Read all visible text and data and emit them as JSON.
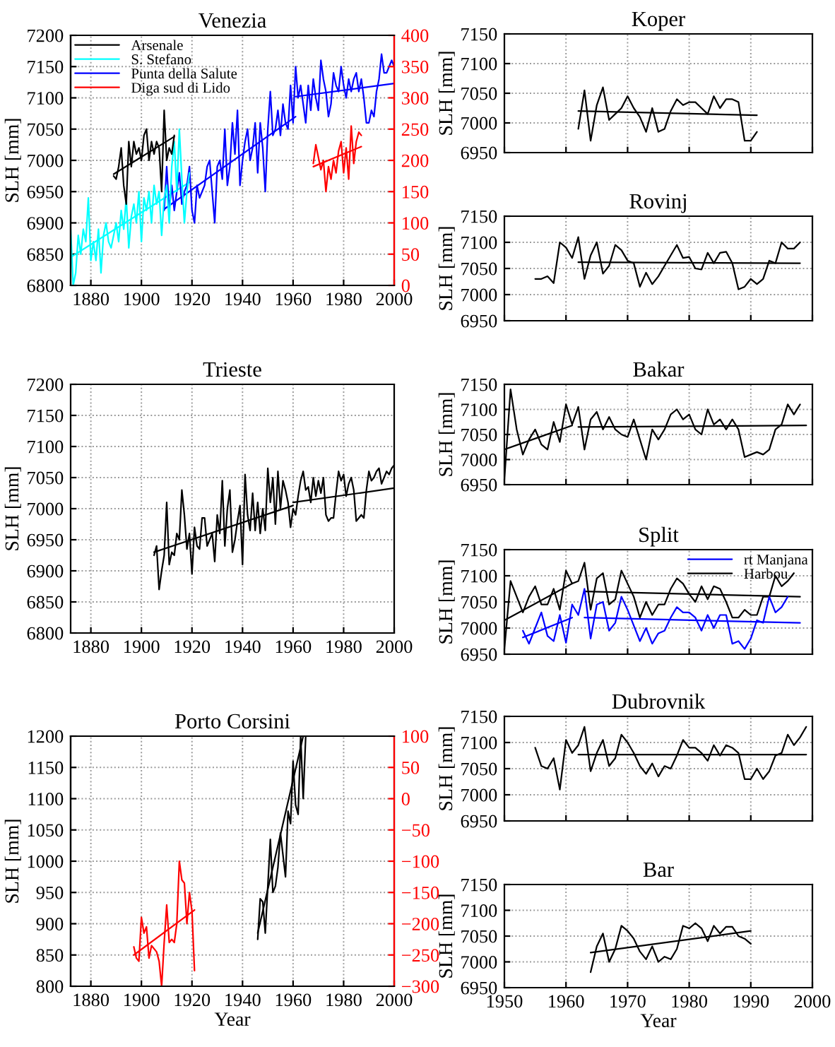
{
  "chart_data": [
    {
      "type": "line",
      "title": "Venezia",
      "ylabel": "SLH [mm]",
      "xlim": [
        1872,
        2000
      ],
      "xticks": [
        1880,
        1900,
        1920,
        1940,
        1960,
        1980,
        2000
      ],
      "ylim": [
        6800,
        7200
      ],
      "yticks": [
        6800,
        6850,
        6900,
        6950,
        7000,
        7050,
        7100,
        7150,
        7200
      ],
      "y2lim": [
        0,
        400
      ],
      "y2ticks": [
        0,
        50,
        100,
        150,
        200,
        250,
        300,
        350,
        400
      ],
      "grid": true,
      "legend": "top left",
      "series": [
        {
          "name": "Arsenale",
          "color": "#000000",
          "x": [
            1889,
            1890,
            1891,
            1892,
            1893,
            1894,
            1895,
            1896,
            1897,
            1898,
            1899,
            1900,
            1901,
            1902,
            1903,
            1904,
            1905,
            1906,
            1907,
            1908,
            1909,
            1910,
            1911,
            1912,
            1913
          ],
          "values": [
            6975,
            6970,
            6990,
            7020,
            6960,
            6930,
            7030,
            6990,
            7030,
            7010,
            7020,
            7000,
            7040,
            7050,
            7000,
            7030,
            7010,
            7030,
            7020,
            6950,
            7080,
            7000,
            7020,
            7010,
            7040
          ]
        },
        {
          "name": "S. Stefano",
          "color": "#00ffff",
          "x": [
            1872,
            1873,
            1874,
            1875,
            1876,
            1877,
            1878,
            1879,
            1880,
            1881,
            1882,
            1883,
            1884,
            1885,
            1886,
            1887,
            1888,
            1889,
            1890,
            1891,
            1892,
            1893,
            1894,
            1895,
            1896,
            1897,
            1898,
            1899,
            1900,
            1901,
            1902,
            1903,
            1904,
            1905,
            1906,
            1907,
            1908,
            1909,
            1910,
            1911,
            1912,
            1913,
            1914,
            1915,
            1916,
            1917,
            1918,
            1919
          ],
          "values": [
            6890,
            6800,
            6820,
            6880,
            6850,
            6890,
            6870,
            6940,
            6840,
            6870,
            6840,
            6890,
            6820,
            6880,
            6900,
            6870,
            6860,
            6880,
            6900,
            6870,
            6920,
            6890,
            6940,
            6860,
            6910,
            6930,
            6900,
            6950,
            6870,
            6940,
            6920,
            6950,
            6900,
            6960,
            6930,
            6950,
            6880,
            6940,
            6960,
            6900,
            6990,
            7030,
            6950,
            7050,
            6970,
            6900,
            6950,
            6980
          ]
        },
        {
          "name": "Punta della Salute",
          "color": "#0000ff",
          "x": [
            1909,
            1910,
            1911,
            1912,
            1913,
            1914,
            1915,
            1916,
            1917,
            1918,
            1919,
            1920,
            1921,
            1922,
            1923,
            1924,
            1925,
            1926,
            1927,
            1928,
            1929,
            1930,
            1931,
            1932,
            1933,
            1934,
            1935,
            1936,
            1937,
            1938,
            1939,
            1940,
            1941,
            1942,
            1943,
            1944,
            1945,
            1946,
            1947,
            1948,
            1949,
            1950,
            1951,
            1952,
            1953,
            1954,
            1955,
            1956,
            1957,
            1958,
            1959,
            1960,
            1961,
            1962,
            1963,
            1964,
            1965,
            1966,
            1967,
            1968,
            1969,
            1970,
            1971,
            1972,
            1973,
            1974,
            1975,
            1976,
            1977,
            1978,
            1979,
            1980,
            1981,
            1982,
            1983,
            1984,
            1985,
            1986,
            1987,
            1988,
            1989,
            1990,
            1991,
            1992,
            1993,
            1994,
            1995,
            1996,
            1997,
            1998,
            1999,
            2000
          ],
          "values": [
            6920,
            6990,
            6920,
            6960,
            6920,
            6950,
            6980,
            6930,
            6950,
            6960,
            6990,
            6920,
            6900,
            6960,
            6940,
            6950,
            6960,
            6990,
            7000,
            6950,
            6900,
            6990,
            7000,
            6970,
            7050,
            6960,
            6990,
            7060,
            7010,
            7080,
            6960,
            7000,
            7030,
            7050,
            7000,
            7020,
            7060,
            6980,
            7060,
            7020,
            6950,
            7050,
            7110,
            7040,
            7050,
            7080,
            7040,
            7090,
            7060,
            7050,
            7120,
            7060,
            7150,
            7100,
            7120,
            7090,
            7060,
            7120,
            7080,
            7130,
            7100,
            7080,
            7160,
            7130,
            7110,
            7070,
            7090,
            7140,
            7120,
            7110,
            7150,
            7120,
            7100,
            7130,
            7110,
            7130,
            7140,
            7110,
            7130,
            7100,
            7060,
            7060,
            7080,
            7070,
            7110,
            7130,
            7170,
            7140,
            7140,
            7150,
            7160,
            7150
          ]
        },
        {
          "name": "Diga sud di Lido",
          "color": "#ff0000",
          "axis": "y2",
          "x": [
            1968,
            1969,
            1970,
            1971,
            1972,
            1973,
            1974,
            1975,
            1976,
            1977,
            1978,
            1979,
            1980,
            1981,
            1982,
            1983,
            1984,
            1985,
            1986,
            1987
          ],
          "values": [
            195,
            225,
            205,
            185,
            200,
            150,
            190,
            170,
            200,
            180,
            215,
            230,
            180,
            220,
            170,
            255,
            195,
            230,
            245,
            240
          ]
        },
        {
          "color": "#000000",
          "x": [
            1889,
            1913
          ],
          "values": [
            6978,
            7038
          ]
        },
        {
          "color": "#00ffff",
          "x": [
            1872,
            1919
          ],
          "values": [
            6845,
            6965
          ]
        },
        {
          "color": "#0000ff",
          "x": [
            1909,
            1961
          ],
          "values": [
            6922,
            7070
          ]
        },
        {
          "color": "#0000ff",
          "x": [
            1961,
            2000
          ],
          "values": [
            7102,
            7123
          ]
        },
        {
          "color": "#ff0000",
          "axis": "y2",
          "x": [
            1968,
            1987
          ],
          "values": [
            190,
            222
          ]
        }
      ]
    },
    {
      "type": "line",
      "title": "Trieste",
      "ylabel": "SLH [mm]",
      "xlim": [
        1872,
        2000
      ],
      "xticks": [
        1880,
        1900,
        1920,
        1940,
        1960,
        1980,
        2000
      ],
      "ylim": [
        6800,
        7200
      ],
      "yticks": [
        6800,
        6850,
        6900,
        6950,
        7000,
        7050,
        7100,
        7150,
        7200
      ],
      "grid": true,
      "series": [
        {
          "color": "#000000",
          "x": [
            1905,
            1906,
            1907,
            1908,
            1909,
            1910,
            1911,
            1912,
            1913,
            1914,
            1915,
            1916,
            1917,
            1918,
            1919,
            1920,
            1921,
            1922,
            1923,
            1924,
            1925,
            1926,
            1927,
            1928,
            1929,
            1930,
            1931,
            1932,
            1933,
            1934,
            1935,
            1936,
            1937,
            1938,
            1939,
            1940,
            1941,
            1942,
            1943,
            1944,
            1945,
            1946,
            1947,
            1948,
            1949,
            1950,
            1951,
            1952,
            1953,
            1954,
            1955,
            1956,
            1957,
            1958,
            1959,
            1960,
            1961,
            1962,
            1963,
            1964,
            1965,
            1966,
            1967,
            1968,
            1969,
            1970,
            1971,
            1972,
            1973,
            1974,
            1975,
            1976,
            1977,
            1978,
            1979,
            1980,
            1981,
            1982,
            1983,
            1984,
            1985,
            1986,
            1987,
            1988,
            1989,
            1990,
            1991,
            1992,
            1993,
            1994,
            1995,
            1996,
            1997,
            1998,
            1999,
            2000
          ],
          "values": [
            6925,
            6940,
            6870,
            6900,
            6925,
            7010,
            6910,
            6930,
            6925,
            6960,
            6950,
            7030,
            6990,
            6935,
            6960,
            6895,
            6970,
            6940,
            6935,
            6985,
            6985,
            6940,
            6950,
            6960,
            6915,
            6990,
            6960,
            7045,
            6940,
            7000,
            7030,
            6930,
            6950,
            6980,
            7005,
            6910,
            7055,
            6990,
            6965,
            7025,
            6965,
            7010,
            6960,
            7000,
            6965,
            7065,
            7010,
            7050,
            6975,
            7060,
            7000,
            7045,
            7030,
            7010,
            6970,
            7000,
            6990,
            7020,
            7045,
            7060,
            7030,
            7035,
            7010,
            7050,
            7020,
            7045,
            7025,
            7050,
            6990,
            6980,
            6985,
            6985,
            7025,
            7060,
            7045,
            7055,
            7020,
            7040,
            7050,
            7030,
            6980,
            6985,
            6990,
            6985,
            7030,
            7060,
            7045,
            7050,
            7060,
            7065,
            7040,
            7050,
            7060,
            7055,
            7065,
            7070
          ]
        },
        {
          "color": "#000000",
          "x": [
            1905,
            1960
          ],
          "values": [
            6930,
            7005
          ]
        },
        {
          "color": "#000000",
          "x": [
            1960,
            2000
          ],
          "values": [
            7010,
            7033
          ]
        }
      ]
    },
    {
      "type": "line",
      "title": "Porto Corsini",
      "xlabel": "Year",
      "ylabel": "SLH [mm]",
      "xlim": [
        1872,
        2000
      ],
      "xticks": [
        1880,
        1900,
        1920,
        1940,
        1960,
        1980,
        2000
      ],
      "ylim": [
        800,
        1200
      ],
      "yticks": [
        800,
        850,
        900,
        950,
        1000,
        1050,
        1100,
        1150,
        1200
      ],
      "y2lim": [
        -300,
        100
      ],
      "y2ticks": [
        {
          "value": -300,
          "label": "−300"
        },
        {
          "value": -250,
          "label": "−250"
        },
        {
          "value": -200,
          "label": "−200"
        },
        {
          "value": -150,
          "label": "−150"
        },
        {
          "value": -100,
          "label": "−100"
        },
        {
          "value": -50,
          "label": "−50"
        },
        0,
        50,
        100
      ],
      "grid": true,
      "series": [
        {
          "color": "#000000",
          "x": [
            1946,
            1947,
            1948,
            1949,
            1950,
            1951,
            1952,
            1953,
            1954,
            1955,
            1956,
            1957,
            1958,
            1959,
            1960,
            1961,
            1962,
            1963,
            1964,
            1965
          ],
          "values": [
            875,
            940,
            935,
            885,
            960,
            1035,
            950,
            960,
            990,
            1045,
            1010,
            975,
            1080,
            1060,
            1160,
            1090,
            1075,
            1200,
            1100,
            1200
          ]
        },
        {
          "color": "#ff0000",
          "axis": "y2",
          "x": [
            1897,
            1898,
            1899,
            1900,
            1901,
            1902,
            1903,
            1904,
            1905,
            1906,
            1907,
            1908,
            1909,
            1910,
            1911,
            1912,
            1913,
            1914,
            1915,
            1916,
            1917,
            1918,
            1919,
            1920,
            1921
          ],
          "values": [
            -237,
            -255,
            -260,
            -190,
            -215,
            -205,
            -255,
            -235,
            -240,
            -245,
            -260,
            -300,
            -230,
            -170,
            -230,
            -225,
            -230,
            -200,
            -100,
            -130,
            -135,
            -200,
            -150,
            -180,
            -275
          ]
        },
        {
          "color": "#000000",
          "x": [
            1946,
            1964
          ],
          "values": [
            885,
            1200
          ]
        },
        {
          "color": "#ff0000",
          "axis": "y2",
          "x": [
            1897,
            1921
          ],
          "values": [
            -250,
            -178
          ]
        }
      ]
    },
    {
      "type": "line",
      "title": "Koper",
      "ylabel": "SLH [mm]",
      "xlim": [
        1950,
        2000
      ],
      "xticks": [
        1950,
        1960,
        1970,
        1980,
        1990,
        2000
      ],
      "ylim": [
        6950,
        7150
      ],
      "yticks": [
        6950,
        7000,
        7050,
        7100,
        7150
      ],
      "grid": true,
      "tick_labels": "y",
      "series": [
        {
          "color": "#000000",
          "x": [
            1962,
            1963,
            1964,
            1965,
            1966,
            1967,
            1968,
            1969,
            1970,
            1971,
            1972,
            1973,
            1974,
            1975,
            1976,
            1977,
            1978,
            1979,
            1980,
            1981,
            1982,
            1983,
            1984,
            1985,
            1986,
            1987,
            1988,
            1989,
            1990,
            1991
          ],
          "values": [
            6990,
            7055,
            6970,
            7030,
            7060,
            7005,
            7015,
            7025,
            7045,
            7025,
            7010,
            6985,
            7025,
            6985,
            6990,
            7020,
            7040,
            7030,
            7035,
            7035,
            7025,
            7015,
            7045,
            7025,
            7040,
            7040,
            7035,
            6970,
            6970,
            6985
          ]
        },
        {
          "color": "#000000",
          "x": [
            1962,
            1991
          ],
          "values": [
            7020,
            7013
          ]
        }
      ]
    },
    {
      "type": "line",
      "title": "Rovinj",
      "ylabel": "SLH [mm]",
      "xlim": [
        1950,
        2000
      ],
      "xticks": [
        1950,
        1960,
        1970,
        1980,
        1990,
        2000
      ],
      "ylim": [
        6950,
        7150
      ],
      "yticks": [
        6950,
        7000,
        7050,
        7100,
        7150
      ],
      "grid": true,
      "tick_labels": "y",
      "series": [
        {
          "color": "#000000",
          "x": [
            1955,
            1956,
            1957,
            1958,
            1959,
            1960,
            1961,
            1962,
            1963,
            1964,
            1965,
            1966,
            1967,
            1968,
            1969,
            1970,
            1971,
            1972,
            1973,
            1974,
            1975,
            1976,
            1977,
            1978,
            1979,
            1980,
            1981,
            1982,
            1983,
            1984,
            1985,
            1986,
            1987,
            1988,
            1989,
            1990,
            1991,
            1992,
            1993,
            1994,
            1995,
            1996,
            1997,
            1998
          ],
          "values": [
            7030,
            7030,
            7035,
            7022,
            7100,
            7090,
            7070,
            7110,
            7030,
            7075,
            7100,
            7040,
            7055,
            7095,
            7085,
            7065,
            7060,
            7015,
            7042,
            7020,
            7035,
            7055,
            7075,
            7095,
            7070,
            7072,
            7050,
            7048,
            7080,
            7060,
            7080,
            7082,
            7060,
            7010,
            7015,
            7030,
            7020,
            7030,
            7065,
            7060,
            7100,
            7088,
            7088,
            7100
          ]
        },
        {
          "color": "#000000",
          "x": [
            1962,
            1998
          ],
          "values": [
            7062,
            7060
          ]
        }
      ]
    },
    {
      "type": "line",
      "title": "Bakar",
      "ylabel": "SLH [mm]",
      "xlim": [
        1950,
        2000
      ],
      "xticks": [
        1950,
        1960,
        1970,
        1980,
        1990,
        2000
      ],
      "ylim": [
        6950,
        7150
      ],
      "yticks": [
        6950,
        7000,
        7050,
        7100,
        7150
      ],
      "grid": true,
      "tick_labels": "y",
      "series": [
        {
          "color": "#000000",
          "x": [
            1950,
            1951,
            1952,
            1953,
            1954,
            1955,
            1956,
            1957,
            1958,
            1959,
            1960,
            1961,
            1962,
            1963,
            1964,
            1965,
            1966,
            1967,
            1968,
            1969,
            1970,
            1971,
            1972,
            1973,
            1974,
            1975,
            1976,
            1977,
            1978,
            1979,
            1980,
            1981,
            1982,
            1983,
            1984,
            1985,
            1986,
            1987,
            1988,
            1989,
            1990,
            1991,
            1992,
            1993,
            1994,
            1995,
            1996,
            1997,
            1998
          ],
          "values": [
            6960,
            7140,
            7060,
            7010,
            7040,
            7060,
            7030,
            7020,
            7075,
            7035,
            7110,
            7070,
            7105,
            7020,
            7080,
            7095,
            7060,
            7085,
            7060,
            7050,
            7045,
            7080,
            7040,
            7000,
            7060,
            7040,
            7060,
            7090,
            7100,
            7080,
            7090,
            7060,
            7050,
            7100,
            7070,
            7080,
            7060,
            7080,
            7060,
            7005,
            7010,
            7015,
            7010,
            7020,
            7060,
            7070,
            7110,
            7090,
            7110
          ]
        },
        {
          "color": "#000000",
          "x": [
            1950,
            1961
          ],
          "values": [
            7020,
            7068
          ]
        },
        {
          "color": "#000000",
          "x": [
            1962,
            1999
          ],
          "values": [
            7065,
            7068
          ]
        }
      ]
    },
    {
      "type": "line",
      "title": "Split",
      "ylabel": "SLH [mm]",
      "xlim": [
        1950,
        2000
      ],
      "xticks": [
        1950,
        1960,
        1970,
        1980,
        1990,
        2000
      ],
      "ylim": [
        6950,
        7150
      ],
      "yticks": [
        6950,
        7000,
        7050,
        7100,
        7150
      ],
      "grid": true,
      "tick_labels": "y",
      "legend": "top right",
      "series": [
        {
          "name": "rt Manjana",
          "color": "#0000ff",
          "x": [
            1953,
            1954,
            1955,
            1956,
            1957,
            1958,
            1959,
            1960,
            1961,
            1962,
            1963,
            1964,
            1965,
            1966,
            1967,
            1968,
            1969,
            1970,
            1971,
            1972,
            1973,
            1974,
            1975,
            1976,
            1977,
            1978,
            1979,
            1980,
            1981,
            1982,
            1983,
            1984,
            1985,
            1986,
            1987,
            1988,
            1989,
            1990,
            1991,
            1992,
            1993,
            1994,
            1995,
            1996
          ],
          "values": [
            6995,
            6970,
            7000,
            7030,
            6985,
            6975,
            7025,
            6972,
            7045,
            7025,
            7075,
            6980,
            7045,
            7050,
            6995,
            7010,
            7060,
            7035,
            7005,
            6975,
            7000,
            6970,
            6990,
            6995,
            7020,
            7040,
            7030,
            7030,
            7020,
            6995,
            7025,
            7000,
            7025,
            7025,
            6970,
            6975,
            6960,
            6980,
            7015,
            7010,
            7060,
            7030,
            7040,
            7060
          ]
        },
        {
          "name": "Harbou",
          "color": "#000000",
          "x": [
            1950,
            1951,
            1952,
            1953,
            1954,
            1955,
            1956,
            1957,
            1958,
            1959,
            1960,
            1961,
            1962,
            1963,
            1964,
            1965,
            1966,
            1967,
            1968,
            1969,
            1970,
            1971,
            1972,
            1973,
            1974,
            1975,
            1976,
            1977,
            1978,
            1979,
            1980,
            1981,
            1982,
            1983,
            1984,
            1985,
            1986,
            1987,
            1988,
            1989,
            1990,
            1991,
            1992,
            1993,
            1994,
            1995,
            1996,
            1997
          ],
          "values": [
            6960,
            7090,
            7060,
            7030,
            7060,
            7080,
            7045,
            7045,
            7075,
            7035,
            7110,
            7085,
            7090,
            7125,
            7035,
            7095,
            7105,
            7045,
            7055,
            7110,
            7085,
            7060,
            7020,
            7050,
            7025,
            7045,
            7045,
            7075,
            7095,
            7085,
            7065,
            7050,
            7080,
            7055,
            7080,
            7075,
            7050,
            7020,
            7020,
            7035,
            7025,
            7025,
            7060,
            7060,
            7100,
            7080,
            7090,
            7105
          ]
        },
        {
          "color": "#000000",
          "x": [
            1950,
            1961
          ],
          "values": [
            7015,
            7085
          ]
        },
        {
          "color": "#000000",
          "x": [
            1963,
            1998
          ],
          "values": [
            7070,
            7060
          ]
        },
        {
          "color": "#0000ff",
          "x": [
            1953,
            1961
          ],
          "values": [
            6982,
            7020
          ]
        },
        {
          "color": "#0000ff",
          "x": [
            1963,
            1998
          ],
          "values": [
            7020,
            7010
          ]
        }
      ]
    },
    {
      "type": "line",
      "title": "Dubrovnik",
      "ylabel": "SLH [mm]",
      "xlim": [
        1950,
        2000
      ],
      "xticks": [
        1950,
        1960,
        1970,
        1980,
        1990,
        2000
      ],
      "ylim": [
        6950,
        7150
      ],
      "yticks": [
        6950,
        7000,
        7050,
        7100,
        7150
      ],
      "grid": true,
      "tick_labels": "y",
      "series": [
        {
          "color": "#000000",
          "x": [
            1955,
            1956,
            1957,
            1958,
            1959,
            1960,
            1961,
            1962,
            1963,
            1964,
            1965,
            1966,
            1967,
            1968,
            1969,
            1970,
            1971,
            1972,
            1973,
            1974,
            1975,
            1976,
            1977,
            1978,
            1979,
            1980,
            1981,
            1982,
            1983,
            1984,
            1985,
            1986,
            1987,
            1988,
            1989,
            1990,
            1991,
            1992,
            1993,
            1994,
            1995,
            1996,
            1997,
            1998,
            1999
          ],
          "values": [
            7090,
            7055,
            7050,
            7070,
            7010,
            7105,
            7080,
            7095,
            7130,
            7045,
            7080,
            7105,
            7055,
            7070,
            7115,
            7100,
            7080,
            7055,
            7040,
            7060,
            7035,
            7055,
            7050,
            7075,
            7105,
            7090,
            7090,
            7080,
            7065,
            7095,
            7075,
            7095,
            7090,
            7080,
            7030,
            7030,
            7050,
            7030,
            7045,
            7075,
            7080,
            7115,
            7095,
            7110,
            7130
          ]
        },
        {
          "color": "#000000",
          "x": [
            1962,
            1999
          ],
          "values": [
            7077,
            7077
          ]
        }
      ]
    },
    {
      "type": "line",
      "title": "Bar",
      "xlabel": "Year",
      "ylabel": "SLH [mm]",
      "xlim": [
        1950,
        2000
      ],
      "xticks": [
        1950,
        1960,
        1970,
        1980,
        1990,
        2000
      ],
      "ylim": [
        6950,
        7150
      ],
      "yticks": [
        6950,
        7000,
        7050,
        7100,
        7150
      ],
      "grid": true,
      "series": [
        {
          "color": "#000000",
          "x": [
            1964,
            1965,
            1966,
            1967,
            1968,
            1969,
            1970,
            1971,
            1972,
            1973,
            1974,
            1975,
            1976,
            1977,
            1978,
            1979,
            1980,
            1981,
            1982,
            1983,
            1984,
            1985,
            1986,
            1987,
            1988,
            1989,
            1990
          ],
          "values": [
            6980,
            7030,
            7055,
            7000,
            7025,
            7070,
            7060,
            7045,
            7020,
            7005,
            7030,
            7000,
            7010,
            7005,
            7025,
            7070,
            7065,
            7075,
            7065,
            7040,
            7070,
            7055,
            7068,
            7068,
            7050,
            7045,
            7035
          ]
        },
        {
          "color": "#000000",
          "x": [
            1964,
            1990
          ],
          "values": [
            7018,
            7060
          ]
        }
      ]
    }
  ]
}
